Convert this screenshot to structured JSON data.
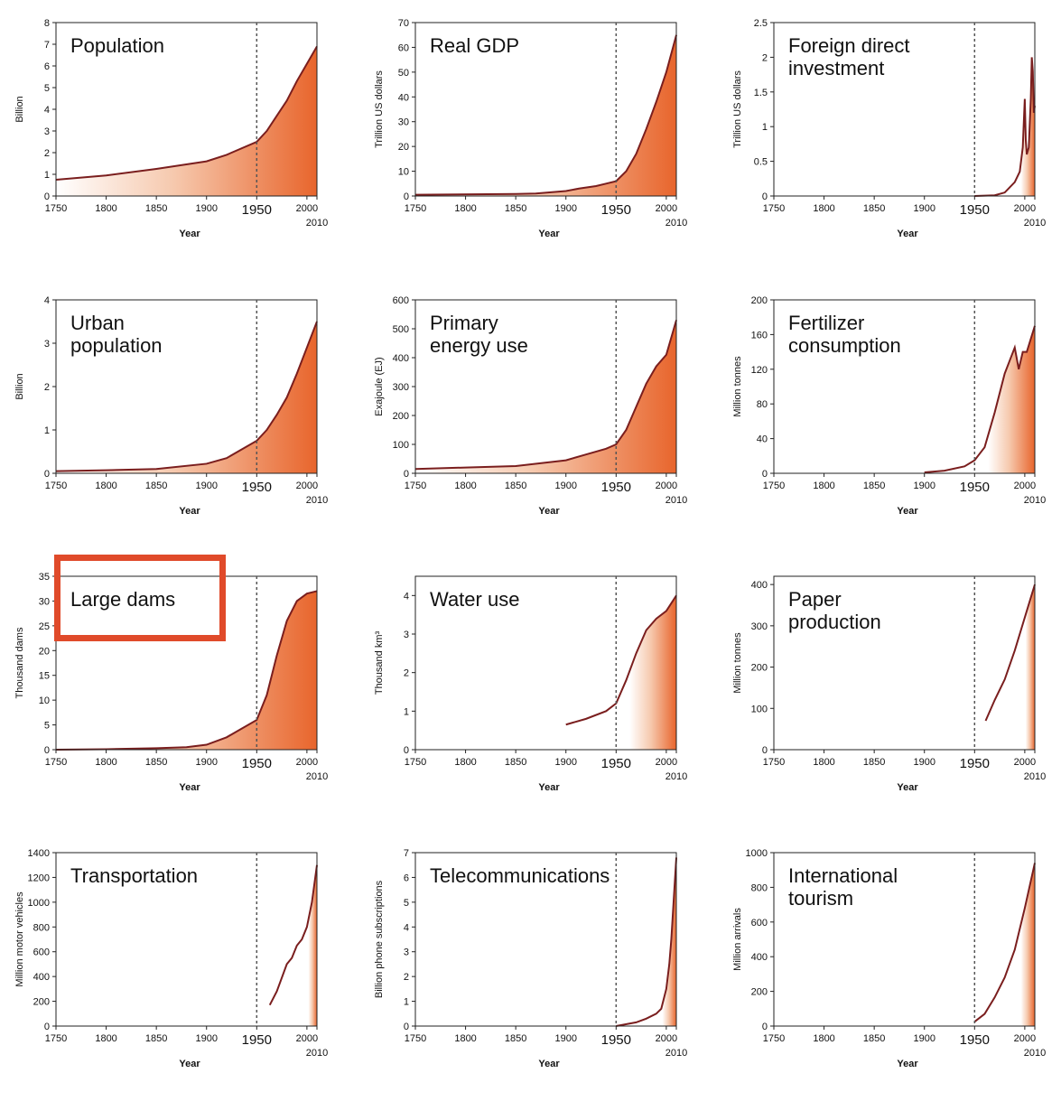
{
  "highlight_color": "#e04a2a",
  "line_color": "#7a1e1e",
  "fill_color": "#e8652c",
  "highlighted_chart": "Large dams",
  "chart_data": [
    {
      "type": "area",
      "title": [
        "Population"
      ],
      "ylabel": "Billion",
      "xlabel": "Year",
      "xlim": [
        1750,
        2010
      ],
      "ylim": [
        0,
        8
      ],
      "yticks": [
        "0",
        "1",
        "2",
        "3",
        "4",
        "5",
        "6",
        "7",
        "8"
      ],
      "xticks": [
        "1750",
        "1800",
        "1850",
        "1900",
        "1950",
        "2000",
        "2010"
      ],
      "x": [
        1750,
        1800,
        1850,
        1900,
        1920,
        1950,
        1960,
        1970,
        1980,
        1990,
        2000,
        2010
      ],
      "y": [
        0.75,
        0.95,
        1.25,
        1.6,
        1.9,
        2.5,
        3.0,
        3.7,
        4.4,
        5.3,
        6.1,
        6.9
      ]
    },
    {
      "type": "area",
      "title": [
        "Real GDP"
      ],
      "ylabel": "Trillion US dollars",
      "xlabel": "Year",
      "xlim": [
        1750,
        2010
      ],
      "ylim": [
        0,
        70
      ],
      "yticks": [
        "0",
        "10",
        "20",
        "30",
        "40",
        "50",
        "60",
        "70"
      ],
      "xticks": [
        "1750",
        "1800",
        "1850",
        "1900",
        "1950",
        "2000",
        "2010"
      ],
      "x": [
        1750,
        1850,
        1870,
        1900,
        1913,
        1930,
        1940,
        1950,
        1960,
        1970,
        1980,
        1990,
        2000,
        2010
      ],
      "y": [
        0.5,
        0.8,
        1,
        2,
        3,
        4,
        5,
        6,
        10,
        17,
        27,
        38,
        50,
        65
      ]
    },
    {
      "type": "area",
      "title": [
        "Foreign direct",
        "investment"
      ],
      "ylabel": "Trillion US dollars",
      "xlabel": "Year",
      "xlim": [
        1750,
        2010
      ],
      "ylim": [
        0,
        2.5
      ],
      "yticks": [
        "0",
        "0.5",
        "1",
        "1.5",
        "2",
        "2.5"
      ],
      "xticks": [
        "1750",
        "1800",
        "1850",
        "1900",
        "1950",
        "2000",
        "2010"
      ],
      "x": [
        1950,
        1970,
        1980,
        1990,
        1995,
        1998,
        2000,
        2001,
        2002,
        2004,
        2006,
        2007,
        2008,
        2009,
        2010
      ],
      "y": [
        0,
        0.01,
        0.05,
        0.2,
        0.35,
        0.7,
        1.4,
        0.8,
        0.6,
        0.7,
        1.4,
        2.0,
        1.8,
        1.2,
        1.3
      ]
    },
    {
      "type": "area",
      "title": [
        "Urban",
        "population"
      ],
      "ylabel": "Billion",
      "xlabel": "Year",
      "xlim": [
        1750,
        2010
      ],
      "ylim": [
        0,
        4
      ],
      "yticks": [
        "0",
        "1",
        "2",
        "3",
        "4"
      ],
      "xticks": [
        "1750",
        "1800",
        "1850",
        "1900",
        "1950",
        "2000",
        "2010"
      ],
      "x": [
        1750,
        1800,
        1850,
        1900,
        1920,
        1950,
        1960,
        1970,
        1980,
        1990,
        2000,
        2010
      ],
      "y": [
        0.05,
        0.07,
        0.1,
        0.22,
        0.35,
        0.75,
        1.0,
        1.35,
        1.75,
        2.3,
        2.9,
        3.5
      ]
    },
    {
      "type": "area",
      "title": [
        "Primary",
        "energy use"
      ],
      "ylabel": "Exajoule (EJ)",
      "xlabel": "Year",
      "xlim": [
        1750,
        2010
      ],
      "ylim": [
        0,
        600
      ],
      "yticks": [
        "0",
        "100",
        "200",
        "300",
        "400",
        "500",
        "600"
      ],
      "xticks": [
        "1750",
        "1800",
        "1850",
        "1900",
        "1950",
        "2000",
        "2010"
      ],
      "x": [
        1750,
        1800,
        1850,
        1900,
        1920,
        1940,
        1950,
        1960,
        1970,
        1980,
        1990,
        2000,
        2010
      ],
      "y": [
        15,
        20,
        25,
        45,
        65,
        85,
        100,
        150,
        230,
        310,
        370,
        410,
        530
      ]
    },
    {
      "type": "area",
      "title": [
        "Fertilizer",
        "consumption"
      ],
      "ylabel": "Million tonnes",
      "xlabel": "Year",
      "xlim": [
        1750,
        2010
      ],
      "ylim": [
        0,
        200
      ],
      "yticks": [
        "0",
        "40",
        "80",
        "120",
        "160",
        "200"
      ],
      "xticks": [
        "1750",
        "1800",
        "1850",
        "1900",
        "1950",
        "2000",
        "2010"
      ],
      "x": [
        1900,
        1920,
        1940,
        1950,
        1960,
        1970,
        1980,
        1985,
        1990,
        1994,
        1998,
        2002,
        2006,
        2010
      ],
      "y": [
        1,
        3,
        8,
        15,
        30,
        70,
        115,
        130,
        145,
        120,
        140,
        140,
        155,
        170
      ]
    },
    {
      "type": "area",
      "title": [
        "Large dams"
      ],
      "ylabel": "Thousand dams",
      "xlabel": "Year",
      "xlim": [
        1750,
        2010
      ],
      "ylim": [
        0,
        35
      ],
      "yticks": [
        "0",
        "5",
        "10",
        "15",
        "20",
        "25",
        "30",
        "35"
      ],
      "xticks": [
        "1750",
        "1800",
        "1850",
        "1900",
        "1950",
        "2000",
        "2010"
      ],
      "x": [
        1750,
        1800,
        1850,
        1880,
        1900,
        1920,
        1950,
        1960,
        1970,
        1980,
        1990,
        2000,
        2010
      ],
      "y": [
        0,
        0.1,
        0.3,
        0.5,
        1,
        2.5,
        6,
        11,
        19,
        26,
        30,
        31.5,
        32
      ]
    },
    {
      "type": "area",
      "title": [
        "Water use"
      ],
      "ylabel": "Thousand km³",
      "xlabel": "Year",
      "xlim": [
        1750,
        2010
      ],
      "ylim": [
        0,
        4.5
      ],
      "yticks": [
        "0",
        "1",
        "2",
        "3",
        "4"
      ],
      "xticks": [
        "1750",
        "1800",
        "1850",
        "1900",
        "1950",
        "2000",
        "2010"
      ],
      "x": [
        1900,
        1920,
        1940,
        1950,
        1960,
        1970,
        1980,
        1990,
        2000,
        2010
      ],
      "y": [
        0.65,
        0.8,
        1.0,
        1.2,
        1.8,
        2.5,
        3.1,
        3.4,
        3.6,
        4.0
      ]
    },
    {
      "type": "area",
      "title": [
        "Paper",
        "production"
      ],
      "ylabel": "Million tonnes",
      "xlabel": "Year",
      "xlim": [
        1750,
        2010
      ],
      "ylim": [
        0,
        420
      ],
      "yticks": [
        "0",
        "100",
        "200",
        "300",
        "400"
      ],
      "xticks": [
        "1750",
        "1800",
        "1850",
        "1900",
        "1950",
        "2000",
        "2010"
      ],
      "x": [
        1961,
        1970,
        1980,
        1990,
        2000,
        2010
      ],
      "y": [
        70,
        120,
        170,
        240,
        320,
        400
      ]
    },
    {
      "type": "area",
      "title": [
        "Transportation"
      ],
      "ylabel": "Million motor vehicles",
      "xlabel": "Year",
      "xlim": [
        1750,
        2010
      ],
      "ylim": [
        0,
        1400
      ],
      "yticks": [
        "0",
        "200",
        "400",
        "600",
        "800",
        "1000",
        "1200",
        "1400"
      ],
      "xticks": [
        "1750",
        "1800",
        "1850",
        "1900",
        "1950",
        "2000",
        "2010"
      ],
      "x": [
        1963,
        1970,
        1980,
        1985,
        1990,
        1995,
        2000,
        2005,
        2010
      ],
      "y": [
        170,
        280,
        500,
        550,
        650,
        700,
        800,
        1000,
        1300
      ]
    },
    {
      "type": "area",
      "title": [
        "Telecommunications"
      ],
      "ylabel": "Billion phone subscriptions",
      "xlabel": "Year",
      "xlim": [
        1750,
        2010
      ],
      "ylim": [
        0,
        7
      ],
      "yticks": [
        "0",
        "1",
        "2",
        "3",
        "4",
        "5",
        "6",
        "7"
      ],
      "xticks": [
        "1750",
        "1800",
        "1850",
        "1900",
        "1950",
        "2000",
        "2010"
      ],
      "x": [
        1950,
        1970,
        1980,
        1990,
        1995,
        2000,
        2003,
        2005,
        2008,
        2010
      ],
      "y": [
        0,
        0.15,
        0.3,
        0.5,
        0.7,
        1.5,
        2.5,
        3.5,
        5.5,
        6.8
      ]
    },
    {
      "type": "area",
      "title": [
        "International",
        "tourism"
      ],
      "ylabel": "Million arrivals",
      "xlabel": "Year",
      "xlim": [
        1750,
        2010
      ],
      "ylim": [
        0,
        1000
      ],
      "yticks": [
        "0",
        "200",
        "400",
        "600",
        "800",
        "1000"
      ],
      "xticks": [
        "1750",
        "1800",
        "1850",
        "1900",
        "1950",
        "2000",
        "2010"
      ],
      "x": [
        1950,
        1960,
        1970,
        1980,
        1990,
        2000,
        2010
      ],
      "y": [
        25,
        70,
        165,
        280,
        440,
        680,
        940
      ]
    }
  ]
}
